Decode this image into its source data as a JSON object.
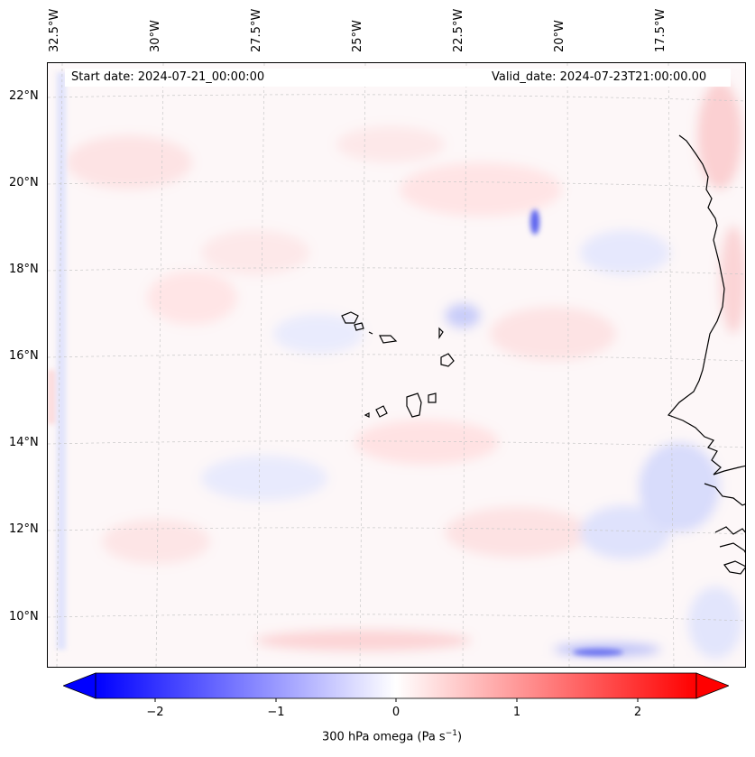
{
  "map": {
    "header": {
      "start_date": "Start date: 2024-07-21_00:00:00",
      "valid_date": "Valid_date: 2024-07-23T21:00:00.00"
    },
    "longitude_labels": [
      "32.5°W",
      "30°W",
      "27.5°W",
      "25°W",
      "22.5°W",
      "20°W",
      "17.5°W"
    ],
    "latitude_labels": [
      "22°N",
      "20°N",
      "18°N",
      "16°N",
      "14°N",
      "12°N",
      "10°N"
    ],
    "gridlines": true,
    "colormap": "blue-white-red (bwr)",
    "colors": {
      "negative": "#0000ff",
      "zero": "#ffffff",
      "positive": "#ff0000"
    }
  },
  "colorbar": {
    "ticks": [
      "−2",
      "−1",
      "0",
      "1",
      "2"
    ],
    "range": [
      -2.7,
      2.7
    ],
    "extend": "both",
    "label_text": "300 hPa omega (Pa s",
    "label_sup": "−1",
    "label_close": ")"
  }
}
